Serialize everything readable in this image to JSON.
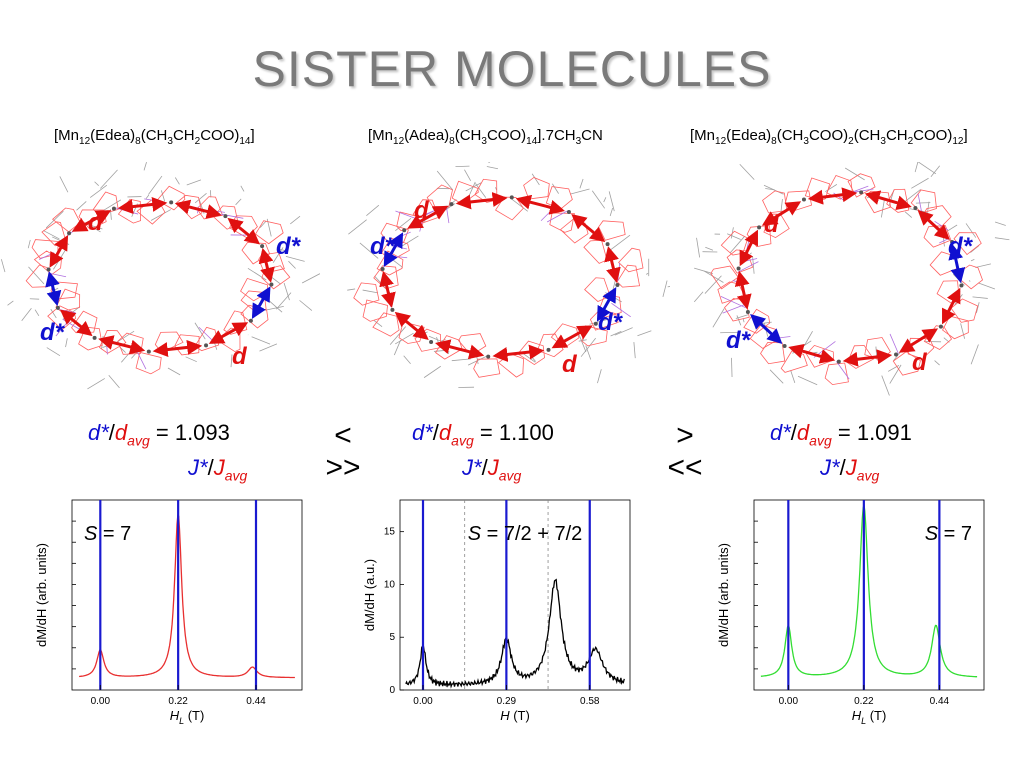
{
  "title": "SISTER MOLECULES",
  "molecules": [
    {
      "formula_parts": [
        "[Mn",
        "12",
        "(Edea)",
        "8",
        "(CH",
        "3",
        "CH",
        "2",
        "COO)",
        "14",
        "]"
      ],
      "ratio_value": "1.093",
      "labels": {
        "d": "d",
        "dstar": "d*"
      }
    },
    {
      "formula_parts": [
        "[Mn",
        "12",
        "(Adea)",
        "8",
        "(CH",
        "3",
        "COO)",
        "14",
        "].7CH",
        "3",
        "CN"
      ],
      "ratio_value": "1.100",
      "labels": {
        "d": "d",
        "dstar": "d*"
      }
    },
    {
      "formula_parts": [
        "[Mn",
        "12",
        "(Edea)",
        "8",
        "(CH",
        "3",
        "COO)",
        "2",
        "(CH",
        "3",
        "CH",
        "2",
        "COO)",
        "12",
        "]"
      ],
      "ratio_value": "1.091",
      "labels": {
        "d": "d",
        "dstar": "d*"
      }
    }
  ],
  "ratio": {
    "d_star": "d*",
    "slash": "/",
    "d": "d",
    "avg": "avg",
    "equals": " = ",
    "J_star": "J*",
    "J": "J"
  },
  "comparisons": [
    {
      "top": "<",
      "bottom": ">>"
    },
    {
      "top": ">",
      "bottom": "<<"
    }
  ],
  "spectra": [
    {
      "spin_label": "S = 7",
      "ylabel": "dM/dH (arb. units)",
      "xlabel": "H_L (T)",
      "x_ticks": [
        "0.00",
        "0.22",
        "0.44"
      ],
      "line_color": "#e83030",
      "blue_lines_at": [
        0.0,
        0.22,
        0.44
      ],
      "xlim": [
        -0.08,
        0.57
      ],
      "peaks": [
        [
          0.0,
          0.16,
          0.012
        ],
        [
          0.22,
          0.95,
          0.012
        ],
        [
          0.43,
          0.06,
          0.015
        ]
      ]
    },
    {
      "spin_label": "S = 7/2 + 7/2",
      "ylabel": "dM/dH (a.u.)",
      "xlabel": "H (T)",
      "x_ticks": [
        "0.00",
        "0.29",
        "0.58"
      ],
      "y_ticks": [
        "0",
        "5",
        "10",
        "15"
      ],
      "ylim": [
        0,
        18
      ],
      "line_color": "#000000",
      "blue_lines_at": [
        0.0,
        0.29,
        0.58
      ],
      "dashed_lines_at": [
        0.145,
        0.435
      ],
      "xlim": [
        -0.08,
        0.72
      ],
      "peaks": [
        [
          0.0,
          3.8,
          0.012
        ],
        [
          0.29,
          4.3,
          0.02
        ],
        [
          0.46,
          9.8,
          0.025
        ],
        [
          0.6,
          3.2,
          0.03
        ]
      ]
    },
    {
      "spin_label": "S = 7",
      "ylabel": "dM/dH (arb. units)",
      "xlabel": "H_L (T)",
      "x_ticks": [
        "0.00",
        "0.22",
        "0.44"
      ],
      "line_color": "#33dd33",
      "blue_lines_at": [
        0.0,
        0.22,
        0.44
      ],
      "xlim": [
        -0.1,
        0.57
      ],
      "peaks": [
        [
          0.0,
          0.3,
          0.012
        ],
        [
          0.22,
          1.0,
          0.015
        ],
        [
          0.43,
          0.3,
          0.015
        ]
      ]
    }
  ]
}
